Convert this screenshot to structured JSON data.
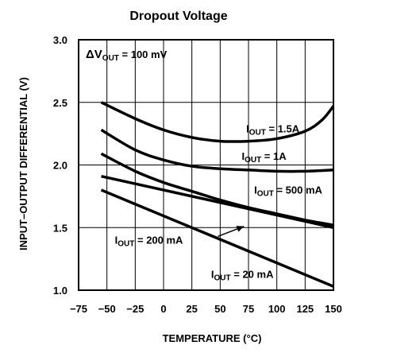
{
  "chart_data": {
    "type": "line",
    "title": "Dropout Voltage",
    "xlabel": "TEMPERATURE (°C)",
    "ylabel": "INPUT–OUTPUT DIFFERENTIAL (V)",
    "xlim": [
      -75,
      150
    ],
    "ylim": [
      1.0,
      3.0
    ],
    "x_ticks": [
      "−75",
      "−50",
      "−25",
      "0",
      "25",
      "50",
      "75",
      "100",
      "125",
      "150"
    ],
    "y_ticks": [
      "1.0",
      "1.5",
      "2.0",
      "2.5",
      "3.0"
    ],
    "grid": true,
    "condition": {
      "prefix": "ΔV",
      "sub": "OUT",
      "suffix": " = 100 mV"
    },
    "series": [
      {
        "name": "1.5A",
        "label": {
          "prefix": "I",
          "sub": "OUT",
          "suffix": " = 1.5A"
        },
        "x": [
          -55,
          -25,
          0,
          25,
          50,
          75,
          100,
          125,
          140,
          150
        ],
        "y": [
          2.5,
          2.37,
          2.28,
          2.22,
          2.19,
          2.19,
          2.21,
          2.27,
          2.36,
          2.47
        ]
      },
      {
        "name": "1A",
        "label": {
          "prefix": "I",
          "sub": "OUT",
          "suffix": " = 1A"
        },
        "x": [
          -55,
          -25,
          0,
          25,
          50,
          75,
          100,
          125,
          150
        ],
        "y": [
          2.28,
          2.12,
          2.04,
          1.99,
          1.97,
          1.96,
          1.95,
          1.95,
          1.96
        ]
      },
      {
        "name": "500 mA",
        "label": {
          "prefix": "I",
          "sub": "OUT",
          "suffix": " = 500 mA"
        },
        "x": [
          -55,
          -25,
          0,
          25,
          50,
          75,
          100,
          125,
          150
        ],
        "y": [
          2.09,
          1.95,
          1.86,
          1.79,
          1.72,
          1.66,
          1.61,
          1.56,
          1.52
        ]
      },
      {
        "name": "200 mA",
        "label": {
          "prefix": "I",
          "sub": "OUT",
          "suffix": " = 200 mA"
        },
        "x": [
          -55,
          150
        ],
        "y": [
          1.91,
          1.5
        ]
      },
      {
        "name": "20 mA",
        "label": {
          "prefix": "I",
          "sub": "OUT",
          "suffix": " = 20 mA"
        },
        "x": [
          -55,
          150
        ],
        "y": [
          1.8,
          1.03
        ]
      }
    ]
  }
}
